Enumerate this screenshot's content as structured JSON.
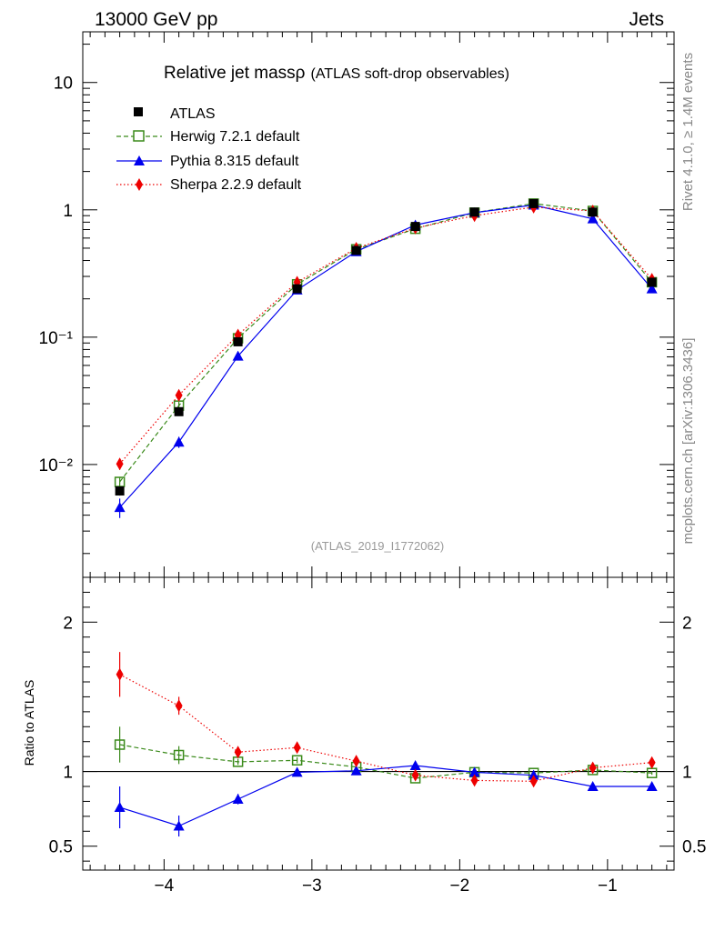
{
  "header": {
    "energy_label": "13000 GeV pp",
    "category_label": "Jets",
    "title_main": "Relative jet massρ",
    "title_sub": "(ATLAS soft-drop observables)",
    "side_label_top": "Rivet 4.1.0, ≥ 1.4M events",
    "side_label_bottom": "mcplots.cern.ch [arXiv:1306.3436]",
    "watermark": "(ATLAS_2019_I1772062)"
  },
  "colors": {
    "data": "#000000",
    "herwig": "#3a8a1a",
    "pythia": "#0000ee",
    "sherpa": "#ee0000",
    "side_text": "#888888"
  },
  "chart_data": [
    {
      "type": "line",
      "title": "Relative jet massρ (ATLAS soft-drop observables)",
      "xlabel": "",
      "ylabel": "",
      "yscale": "log",
      "xlim": [
        -4.55,
        -0.55
      ],
      "ylim": [
        0.0013,
        25
      ],
      "x": [
        -4.3,
        -3.9,
        -3.5,
        -3.1,
        -2.7,
        -2.3,
        -1.9,
        -1.5,
        -1.1,
        -0.7
      ],
      "ytick_labels": [
        "10",
        "1",
        "10⁻¹",
        "10⁻²"
      ],
      "ytick_values": [
        10,
        1,
        0.1,
        0.01
      ],
      "legend_position": "top-left",
      "series": [
        {
          "name": "ATLAS",
          "key": "data",
          "marker": "square",
          "line": "none",
          "values": [
            0.0062,
            0.026,
            0.092,
            0.24,
            0.48,
            0.74,
            0.96,
            1.12,
            0.96,
            0.27
          ],
          "errors": [
            0.0005,
            0.0015,
            0.004,
            0.008,
            0.012,
            0.015,
            0.02,
            0.02,
            0.02,
            0.01
          ]
        },
        {
          "name": "Herwig 7.2.1 default",
          "key": "herwig",
          "marker": "open-square",
          "line": "dashed",
          "values": [
            0.0073,
            0.029,
            0.098,
            0.26,
            0.49,
            0.71,
            0.95,
            1.12,
            0.98,
            0.27
          ],
          "errors": [
            0.0007,
            0.002,
            0.003,
            0.005,
            0.008,
            0.01,
            0.012,
            0.015,
            0.015,
            0.008
          ]
        },
        {
          "name": "Pythia 8.315 default",
          "key": "pythia",
          "marker": "triangle",
          "line": "solid",
          "values": [
            0.0046,
            0.015,
            0.071,
            0.235,
            0.47,
            0.76,
            0.95,
            1.09,
            0.85,
            0.24
          ],
          "errors": [
            0.0008,
            0.0015,
            0.003,
            0.005,
            0.008,
            0.01,
            0.012,
            0.015,
            0.015,
            0.008
          ]
        },
        {
          "name": "Sherpa 2.2.9 default",
          "key": "sherpa",
          "marker": "diamond",
          "line": "dotted",
          "values": [
            0.0101,
            0.035,
            0.104,
            0.27,
            0.5,
            0.72,
            0.9,
            1.05,
            0.98,
            0.285
          ],
          "errors": [
            0.001,
            0.002,
            0.003,
            0.005,
            0.008,
            0.01,
            0.012,
            0.015,
            0.015,
            0.008
          ]
        }
      ]
    },
    {
      "type": "line",
      "title": "",
      "xlabel": "",
      "ylabel": "Ratio to ATLAS",
      "yscale": "linear",
      "xlim": [
        -4.55,
        -0.55
      ],
      "ylim": [
        0.34,
        2.3
      ],
      "x": [
        -4.3,
        -3.9,
        -3.5,
        -3.1,
        -2.7,
        -2.3,
        -1.9,
        -1.5,
        -1.1,
        -0.7
      ],
      "xtick_labels": [
        "−4",
        "−3",
        "−2",
        "−1"
      ],
      "xtick_values": [
        -4,
        -3,
        -2,
        -1
      ],
      "ytick_labels": [
        "2",
        "1",
        "0.5"
      ],
      "ytick_values": [
        2,
        1,
        0.5
      ],
      "reference_line": 1,
      "series": [
        {
          "name": "Herwig 7.2.1 default",
          "key": "herwig",
          "marker": "open-square",
          "line": "dashed",
          "values": [
            1.18,
            1.11,
            1.065,
            1.075,
            1.03,
            0.955,
            0.995,
            0.99,
            1.01,
            0.99
          ],
          "errors": [
            0.12,
            0.06,
            0.02,
            0.02,
            0.015,
            0.015,
            0.012,
            0.012,
            0.012,
            0.012
          ]
        },
        {
          "name": "Pythia 8.315 default",
          "key": "pythia",
          "marker": "triangle",
          "line": "solid",
          "values": [
            0.76,
            0.635,
            0.815,
            0.995,
            1.005,
            1.04,
            0.995,
            0.975,
            0.9,
            0.9
          ],
          "errors": [
            0.14,
            0.07,
            0.035,
            0.02,
            0.015,
            0.015,
            0.012,
            0.012,
            0.012,
            0.012
          ]
        },
        {
          "name": "Sherpa 2.2.9 default",
          "key": "sherpa",
          "marker": "diamond",
          "line": "dotted",
          "values": [
            1.65,
            1.44,
            1.13,
            1.16,
            1.07,
            0.975,
            0.94,
            0.935,
            1.025,
            1.06
          ],
          "errors": [
            0.15,
            0.06,
            0.03,
            0.025,
            0.02,
            0.015,
            0.012,
            0.012,
            0.012,
            0.012
          ]
        }
      ]
    }
  ]
}
